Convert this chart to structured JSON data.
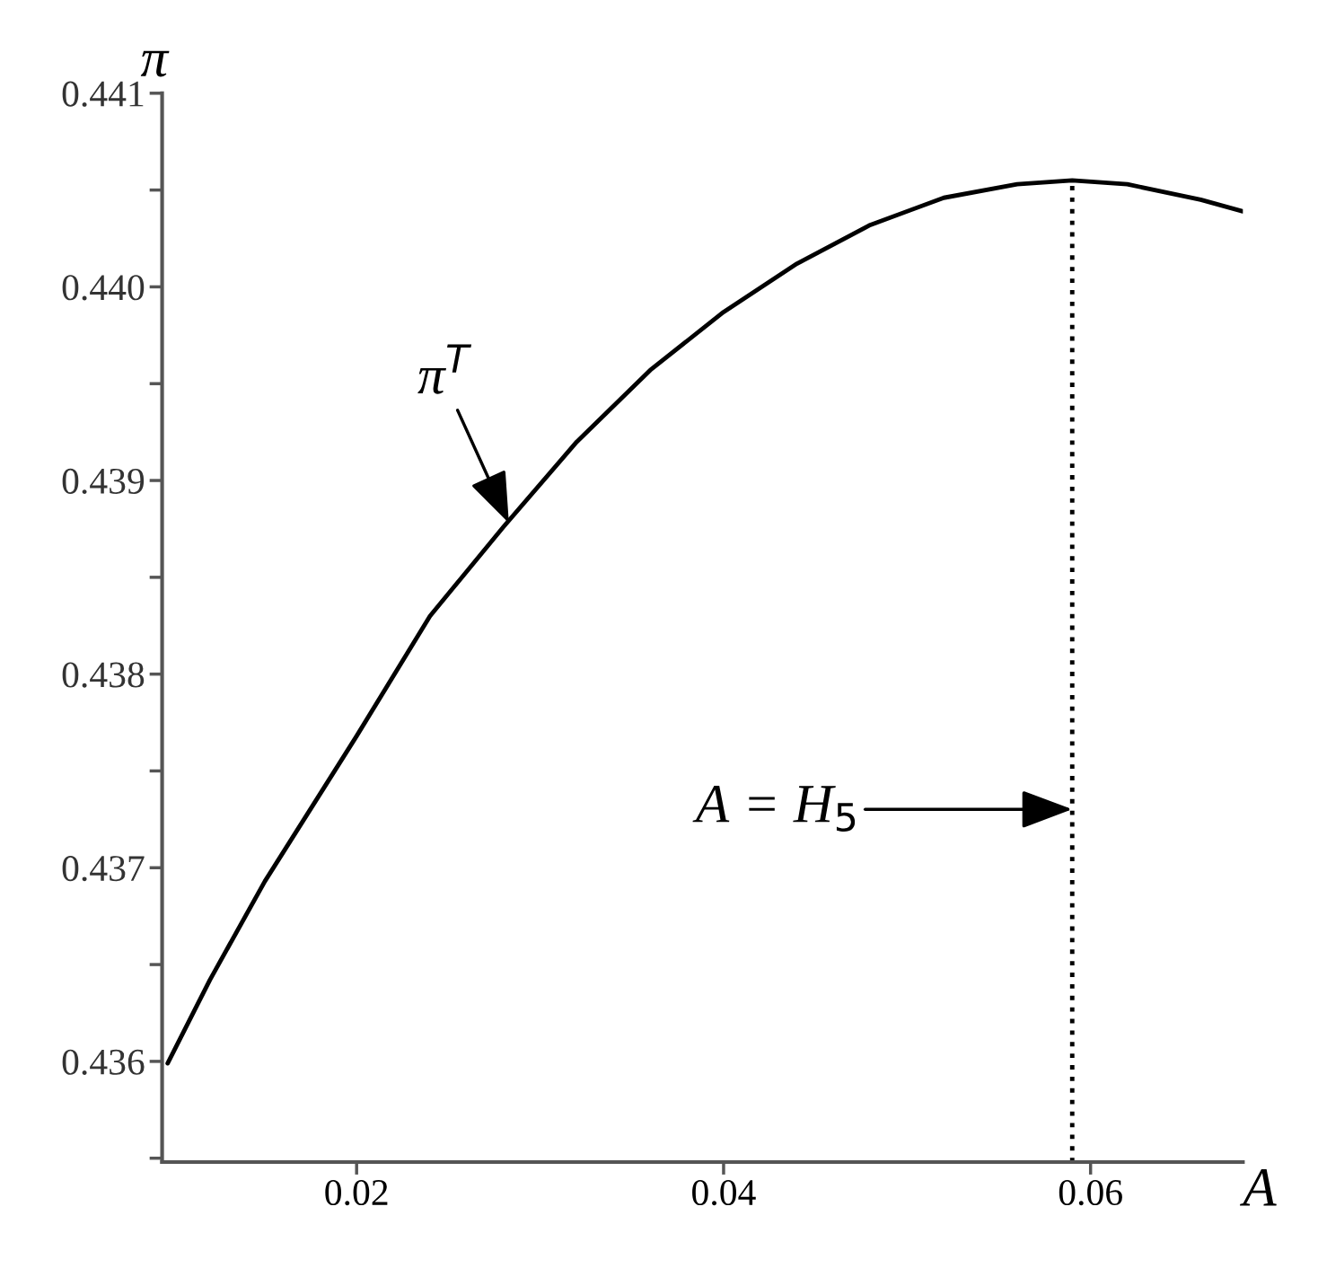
{
  "chart_data": {
    "type": "line",
    "xlabel": "A",
    "ylabel": "π",
    "x": [
      0.0097,
      0.012,
      0.015,
      0.018,
      0.02,
      0.024,
      0.028,
      0.032,
      0.036,
      0.04,
      0.044,
      0.048,
      0.052,
      0.056,
      0.059,
      0.062,
      0.066,
      0.0683
    ],
    "series": [
      {
        "color": "#000000",
        "values": [
          0.43599,
          0.43642,
          0.43693,
          0.43738,
          0.43768,
          0.4383,
          0.43876,
          0.4392,
          0.43957,
          0.43987,
          0.44012,
          0.44032,
          0.44046,
          0.44053,
          0.44055,
          0.44053,
          0.44045,
          0.44039
        ]
      }
    ],
    "xlim": [
      0.0094,
      0.0683
    ],
    "xticks": [
      0.02,
      0.04,
      0.06
    ],
    "ylim": [
      0.43548,
      0.441
    ],
    "yticks": [
      {
        "value": 0.4355,
        "label": null
      },
      {
        "value": 0.436,
        "label": "0.436"
      },
      {
        "value": 0.4365,
        "label": null
      },
      {
        "value": 0.437,
        "label": "0.437"
      },
      {
        "value": 0.4375,
        "label": null
      },
      {
        "value": 0.438,
        "label": "0.438"
      },
      {
        "value": 0.4385,
        "label": null
      },
      {
        "value": 0.439,
        "label": "0.439"
      },
      {
        "value": 0.4395,
        "label": null
      },
      {
        "value": 0.44,
        "label": "0.440"
      },
      {
        "value": 0.4405,
        "label": null
      },
      {
        "value": 0.441,
        "label": "0.441"
      }
    ],
    "ref_lines": [
      {
        "axis": "x",
        "value": 0.059,
        "label": "A = H$_{5}$",
        "color": "#000000",
        "line_style": "dotted"
      }
    ],
    "annotations": [
      {
        "text": "π$^{T}$",
        "x": 0.0283,
        "y": 0.43878
      }
    ],
    "grid": false,
    "legend": false,
    "marker": "none",
    "line_style": "solid"
  }
}
